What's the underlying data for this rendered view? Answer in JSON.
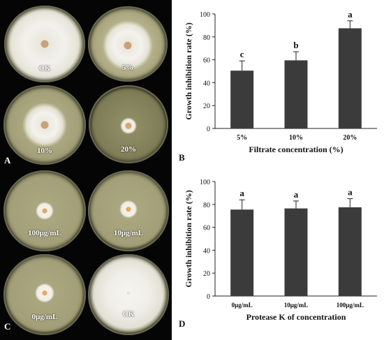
{
  "photos": {
    "panel_a_letter": "A",
    "panel_c_letter": "C",
    "dishes_a": [
      {
        "label": "CK"
      },
      {
        "label": "5%"
      },
      {
        "label": "10%"
      },
      {
        "label": "20%"
      }
    ],
    "dishes_c": [
      {
        "label": "100μg/mL"
      },
      {
        "label": "10μg/mL"
      },
      {
        "label": "0μg/mL"
      },
      {
        "label": "CK"
      }
    ]
  },
  "chart_data": [
    {
      "type": "bar",
      "panel_letter": "B",
      "categories": [
        "5%",
        "10%",
        "20%"
      ],
      "values": [
        50.5,
        59.5,
        87.5
      ],
      "errors": [
        8.5,
        7.5,
        6.5
      ],
      "significance": [
        "c",
        "b",
        "a"
      ],
      "xlabel": "Filtrate concentration (%)",
      "ylabel": "Growth inhibition rate (%)",
      "ylim": [
        0,
        100
      ],
      "yticks": [
        0,
        20,
        40,
        60,
        80,
        100
      ],
      "grid": false,
      "bar_color": "#3b3b3b"
    },
    {
      "type": "bar",
      "panel_letter": "D",
      "categories": [
        "0μg/mL",
        "10μg/mL",
        "100μg/mL"
      ],
      "values": [
        75.5,
        76.5,
        77.5
      ],
      "errors": [
        8.5,
        6.5,
        7.5
      ],
      "significance": [
        "a",
        "a",
        "a"
      ],
      "xlabel": "Protease K of concentration",
      "ylabel": "Growth inhibition rate (%)",
      "ylim": [
        0,
        100
      ],
      "yticks": [
        0,
        20,
        40,
        60,
        80,
        100
      ],
      "grid": false,
      "bar_color": "#3b3b3b"
    }
  ]
}
